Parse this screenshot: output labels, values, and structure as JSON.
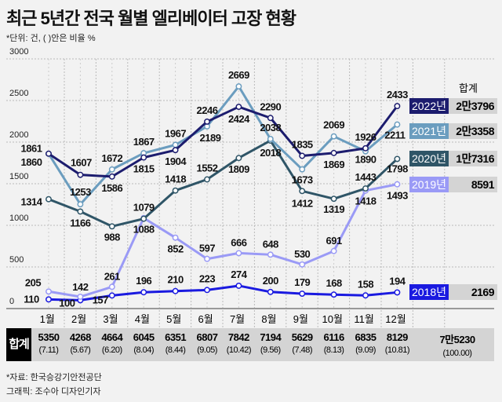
{
  "title": "최근 5년간 전국 월별 엘리베이터 고장 현황",
  "unit_note": "*단위: 건, ( )안은 비율 %",
  "total_header": "합계",
  "chart_data": {
    "type": "line",
    "title": "최근 5년간 전국 월별 엘리베이터 고장 현황",
    "categories": [
      "1월",
      "2월",
      "3월",
      "4월",
      "5월",
      "6월",
      "7월",
      "8월",
      "9월",
      "10월",
      "11월",
      "12월"
    ],
    "yticks": [
      "0",
      "500",
      "1000",
      "1500",
      "2000",
      "2500",
      "3000"
    ],
    "ylim": [
      0,
      3000
    ],
    "grid": true,
    "legend_placement": "right",
    "series": [
      {
        "name": "2022년",
        "total": "2만3796",
        "color": "#1c1c6e",
        "values": [
          1861,
          1607,
          1586,
          1815,
          1904,
          2246,
          2424,
          2290,
          1835,
          1869,
          1926,
          2433
        ]
      },
      {
        "name": "2021년",
        "total": "2만3358",
        "color": "#6b9dbf",
        "values": [
          1860,
          1253,
          1672,
          1867,
          1967,
          2189,
          2669,
          2038,
          1673,
          2069,
          1890,
          2211
        ]
      },
      {
        "name": "2020년",
        "total": "1만7316",
        "color": "#2f5567",
        "values": [
          1314,
          1166,
          988,
          1079,
          1418,
          1552,
          1809,
          2018,
          1412,
          1319,
          1443,
          1798
        ]
      },
      {
        "name": "2019년",
        "total": "8591",
        "color": "#9a9af6",
        "values": [
          205,
          142,
          261,
          1088,
          852,
          597,
          666,
          648,
          530,
          691,
          1418,
          1493
        ]
      },
      {
        "name": "2018년",
        "total": "2169",
        "color": "#1a1ae0",
        "values": [
          110,
          100,
          157,
          196,
          210,
          223,
          274,
          200,
          179,
          168,
          158,
          194
        ]
      }
    ]
  },
  "totals": {
    "label": "합계",
    "values": [
      "5350",
      "4268",
      "4664",
      "6045",
      "6351",
      "6807",
      "7842",
      "7194",
      "5629",
      "6116",
      "6835",
      "8129"
    ],
    "percents": [
      "(7.11)",
      "(5.67)",
      "(6.20)",
      "(8.04)",
      "(8.44)",
      "(9.05)",
      "(10.42)",
      "(9.56)",
      "(7.48)",
      "(8.13)",
      "(9.09)",
      "(10.81)"
    ],
    "grand_total": "7만5230",
    "grand_percent": "(100.00)"
  },
  "footer": {
    "source": "*자료: 한국승강기안전공단",
    "credit": "그래픽: 조수아 디자인기자"
  }
}
